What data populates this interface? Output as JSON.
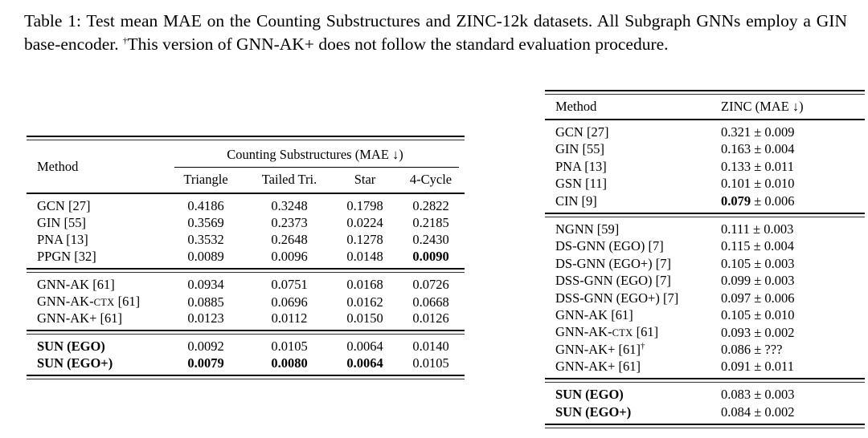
{
  "caption": {
    "segments": [
      {
        "t": "Table 1: Test mean MAE on the Counting Substructures and ZINC-12k datasets. All Subgraph GNNs employ a GIN base-encoder. "
      },
      {
        "t": "†",
        "sup": true
      },
      {
        "t": "This version of GNN-AK+ does not follow the standard evaluation procedure."
      }
    ]
  },
  "left_table": {
    "header": {
      "method_label": "Method",
      "group_label": "Counting Substructures (MAE ↓)",
      "columns": [
        "Triangle",
        "Tailed Tri.",
        "Star",
        "4-Cycle"
      ]
    },
    "groups": [
      {
        "rows": [
          {
            "label": [
              {
                "t": "GCN [27]"
              }
            ],
            "values": [
              [
                {
                  "t": "0.4186"
                }
              ],
              [
                {
                  "t": "0.3248"
                }
              ],
              [
                {
                  "t": "0.1798"
                }
              ],
              [
                {
                  "t": "0.2822"
                }
              ]
            ]
          },
          {
            "label": [
              {
                "t": "GIN [55]"
              }
            ],
            "values": [
              [
                {
                  "t": "0.3569"
                }
              ],
              [
                {
                  "t": "0.2373"
                }
              ],
              [
                {
                  "t": "0.0224"
                }
              ],
              [
                {
                  "t": "0.2185"
                }
              ]
            ]
          },
          {
            "label": [
              {
                "t": "PNA [13]"
              }
            ],
            "values": [
              [
                {
                  "t": "0.3532"
                }
              ],
              [
                {
                  "t": "0.2648"
                }
              ],
              [
                {
                  "t": "0.1278"
                }
              ],
              [
                {
                  "t": "0.2430"
                }
              ]
            ]
          },
          {
            "label": [
              {
                "t": "PPGN [32]"
              }
            ],
            "values": [
              [
                {
                  "t": "0.0089"
                }
              ],
              [
                {
                  "t": "0.0096"
                }
              ],
              [
                {
                  "t": "0.0148"
                }
              ],
              [
                {
                  "t": "0.0090",
                  "b": true
                }
              ]
            ]
          }
        ]
      },
      {
        "rows": [
          {
            "label": [
              {
                "t": "GNN-AK [61]"
              }
            ],
            "values": [
              [
                {
                  "t": "0.0934"
                }
              ],
              [
                {
                  "t": "0.0751"
                }
              ],
              [
                {
                  "t": "0.0168"
                }
              ],
              [
                {
                  "t": "0.0726"
                }
              ]
            ]
          },
          {
            "label": [
              {
                "t": "GNN-AK-"
              },
              {
                "t": "CTX",
                "sc": true
              },
              {
                "t": " [61]"
              }
            ],
            "values": [
              [
                {
                  "t": "0.0885"
                }
              ],
              [
                {
                  "t": "0.0696"
                }
              ],
              [
                {
                  "t": "0.0162"
                }
              ],
              [
                {
                  "t": "0.0668"
                }
              ]
            ]
          },
          {
            "label": [
              {
                "t": "GNN-AK+ [61]"
              }
            ],
            "values": [
              [
                {
                  "t": "0.0123"
                }
              ],
              [
                {
                  "t": "0.0112"
                }
              ],
              [
                {
                  "t": "0.0150"
                }
              ],
              [
                {
                  "t": "0.0126"
                }
              ]
            ]
          }
        ]
      },
      {
        "rows": [
          {
            "label": [
              {
                "t": "SUN (EGO)",
                "b": true
              }
            ],
            "values": [
              [
                {
                  "t": "0.0092"
                }
              ],
              [
                {
                  "t": "0.0105"
                }
              ],
              [
                {
                  "t": "0.0064"
                }
              ],
              [
                {
                  "t": "0.0140"
                }
              ]
            ]
          },
          {
            "label": [
              {
                "t": "SUN (EGO+)",
                "b": true
              }
            ],
            "values": [
              [
                {
                  "t": "0.0079",
                  "b": true
                }
              ],
              [
                {
                  "t": "0.0080",
                  "b": true
                }
              ],
              [
                {
                  "t": "0.0064",
                  "b": true
                }
              ],
              [
                {
                  "t": "0.0105"
                }
              ]
            ]
          }
        ]
      }
    ]
  },
  "right_table": {
    "header": {
      "method_label": "Method",
      "metric_label": "ZINC (MAE ↓)"
    },
    "groups": [
      {
        "rows": [
          {
            "label": [
              {
                "t": "GCN [27]"
              }
            ],
            "value": [
              {
                "t": "0.321 ± 0.009"
              }
            ]
          },
          {
            "label": [
              {
                "t": "GIN [55]"
              }
            ],
            "value": [
              {
                "t": "0.163 ± 0.004"
              }
            ]
          },
          {
            "label": [
              {
                "t": "PNA [13]"
              }
            ],
            "value": [
              {
                "t": "0.133 ± 0.011"
              }
            ]
          },
          {
            "label": [
              {
                "t": "GSN [11]"
              }
            ],
            "value": [
              {
                "t": "0.101 ± 0.010"
              }
            ]
          },
          {
            "label": [
              {
                "t": "CIN [9]"
              }
            ],
            "value": [
              {
                "t": "0.079",
                "b": true
              },
              {
                "t": " ± 0.006"
              }
            ]
          }
        ]
      },
      {
        "rows": [
          {
            "label": [
              {
                "t": "NGNN [59]"
              }
            ],
            "value": [
              {
                "t": "0.111 ± 0.003"
              }
            ]
          },
          {
            "label": [
              {
                "t": "DS-GNN (EGO) [7]"
              }
            ],
            "value": [
              {
                "t": "0.115 ± 0.004"
              }
            ]
          },
          {
            "label": [
              {
                "t": "DS-GNN (EGO+) [7]"
              }
            ],
            "value": [
              {
                "t": "0.105 ± 0.003"
              }
            ]
          },
          {
            "label": [
              {
                "t": "DSS-GNN (EGO) [7]"
              }
            ],
            "value": [
              {
                "t": "0.099 ± 0.003"
              }
            ]
          },
          {
            "label": [
              {
                "t": "DSS-GNN (EGO+) [7]"
              }
            ],
            "value": [
              {
                "t": "0.097 ± 0.006"
              }
            ]
          },
          {
            "label": [
              {
                "t": "GNN-AK [61]"
              }
            ],
            "value": [
              {
                "t": "0.105 ± 0.010"
              }
            ]
          },
          {
            "label": [
              {
                "t": "GNN-AK-"
              },
              {
                "t": "CTX",
                "sc": true
              },
              {
                "t": " [61]"
              }
            ],
            "value": [
              {
                "t": "0.093 ± 0.002"
              }
            ]
          },
          {
            "label": [
              {
                "t": "GNN-AK+ [61]"
              },
              {
                "t": "†",
                "sup": true
              }
            ],
            "value": [
              {
                "t": "0.086 ± ???"
              }
            ]
          },
          {
            "label": [
              {
                "t": "GNN-AK+ [61]"
              }
            ],
            "value": [
              {
                "t": "0.091 ± 0.011"
              }
            ]
          }
        ]
      },
      {
        "rows": [
          {
            "label": [
              {
                "t": "SUN (EGO)",
                "b": true
              }
            ],
            "value": [
              {
                "t": "0.083 ± 0.003"
              }
            ]
          },
          {
            "label": [
              {
                "t": "SUN (EGO+)",
                "b": true
              }
            ],
            "value": [
              {
                "t": "0.084 ± 0.002"
              }
            ]
          }
        ]
      }
    ]
  }
}
